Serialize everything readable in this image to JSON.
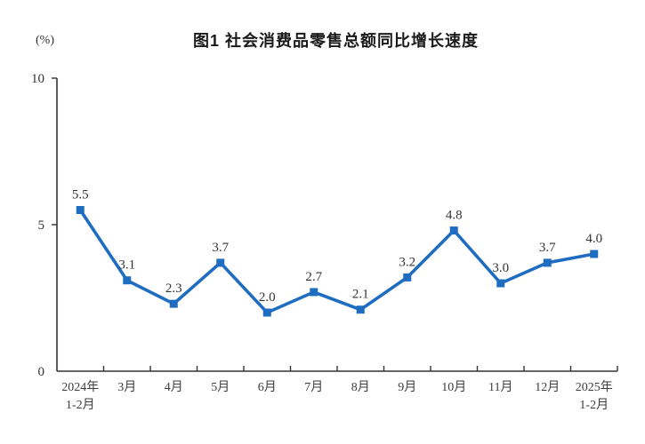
{
  "header": {
    "title": "图1 社会消费品零售总额同比增长速度",
    "unit_label": "(%)"
  },
  "chart_data": {
    "type": "line",
    "title": "图1 社会消费品零售总额同比增长速度",
    "ylabel": "(%)",
    "xlabel": "",
    "categories": [
      [
        "2024年",
        "1-2月"
      ],
      [
        "3月"
      ],
      [
        "4月"
      ],
      [
        "5月"
      ],
      [
        "6月"
      ],
      [
        "7月"
      ],
      [
        "8月"
      ],
      [
        "9月"
      ],
      [
        "10月"
      ],
      [
        "11月"
      ],
      [
        "12月"
      ],
      [
        "2025年",
        "1-2月"
      ]
    ],
    "series": [
      {
        "name": "社会消费品零售总额同比增长速度",
        "values": [
          5.5,
          3.1,
          2.3,
          3.7,
          2.0,
          2.7,
          2.1,
          3.2,
          4.8,
          3.0,
          3.7,
          4.0
        ]
      }
    ],
    "data_labels": [
      "5.5",
      "3.1",
      "2.3",
      "3.7",
      "2.0",
      "2.7",
      "2.1",
      "3.2",
      "4.8",
      "3.0",
      "3.7",
      "4.0"
    ],
    "ylim": [
      0,
      10
    ],
    "yticks": [
      0,
      5,
      10
    ],
    "grid": false,
    "legend": "none",
    "marker": "square",
    "colors": {
      "line": "#1f6dc1",
      "marker": "#1f6dc1",
      "axis": "#333333",
      "label": "#333333"
    }
  }
}
